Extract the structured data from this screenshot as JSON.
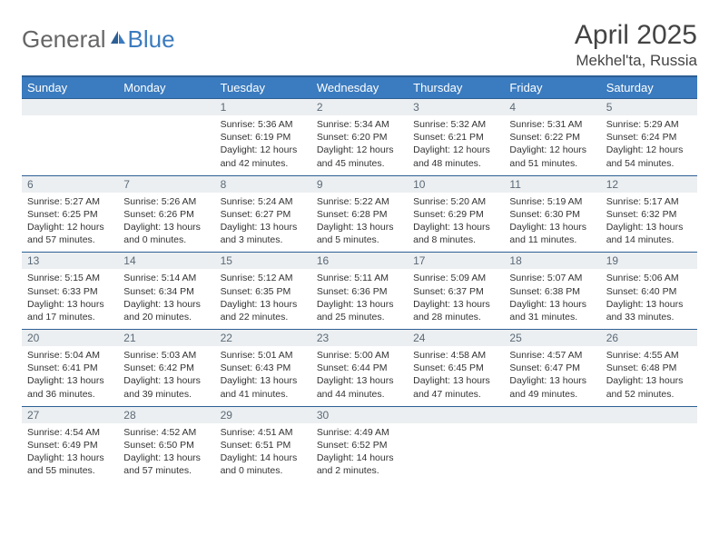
{
  "brand": {
    "part1": "General",
    "part2": "Blue"
  },
  "title": "April 2025",
  "location": "Mekhel'ta, Russia",
  "colors": {
    "header_bg": "#3b7bbf",
    "header_border": "#2d5f94",
    "daynum_bg": "#eceff1",
    "daynum_text": "#5b6a78",
    "text": "#333333",
    "page_bg": "#ffffff"
  },
  "typography": {
    "title_fontsize": 30,
    "location_fontsize": 17,
    "weekday_fontsize": 13,
    "daynum_fontsize": 12,
    "body_fontsize": 10.5
  },
  "weekdays": [
    "Sunday",
    "Monday",
    "Tuesday",
    "Wednesday",
    "Thursday",
    "Friday",
    "Saturday"
  ],
  "weeks": [
    [
      {
        "n": "",
        "sr": "",
        "ss": "",
        "dl": ""
      },
      {
        "n": "",
        "sr": "",
        "ss": "",
        "dl": ""
      },
      {
        "n": "1",
        "sr": "Sunrise: 5:36 AM",
        "ss": "Sunset: 6:19 PM",
        "dl": "Daylight: 12 hours and 42 minutes."
      },
      {
        "n": "2",
        "sr": "Sunrise: 5:34 AM",
        "ss": "Sunset: 6:20 PM",
        "dl": "Daylight: 12 hours and 45 minutes."
      },
      {
        "n": "3",
        "sr": "Sunrise: 5:32 AM",
        "ss": "Sunset: 6:21 PM",
        "dl": "Daylight: 12 hours and 48 minutes."
      },
      {
        "n": "4",
        "sr": "Sunrise: 5:31 AM",
        "ss": "Sunset: 6:22 PM",
        "dl": "Daylight: 12 hours and 51 minutes."
      },
      {
        "n": "5",
        "sr": "Sunrise: 5:29 AM",
        "ss": "Sunset: 6:24 PM",
        "dl": "Daylight: 12 hours and 54 minutes."
      }
    ],
    [
      {
        "n": "6",
        "sr": "Sunrise: 5:27 AM",
        "ss": "Sunset: 6:25 PM",
        "dl": "Daylight: 12 hours and 57 minutes."
      },
      {
        "n": "7",
        "sr": "Sunrise: 5:26 AM",
        "ss": "Sunset: 6:26 PM",
        "dl": "Daylight: 13 hours and 0 minutes."
      },
      {
        "n": "8",
        "sr": "Sunrise: 5:24 AM",
        "ss": "Sunset: 6:27 PM",
        "dl": "Daylight: 13 hours and 3 minutes."
      },
      {
        "n": "9",
        "sr": "Sunrise: 5:22 AM",
        "ss": "Sunset: 6:28 PM",
        "dl": "Daylight: 13 hours and 5 minutes."
      },
      {
        "n": "10",
        "sr": "Sunrise: 5:20 AM",
        "ss": "Sunset: 6:29 PM",
        "dl": "Daylight: 13 hours and 8 minutes."
      },
      {
        "n": "11",
        "sr": "Sunrise: 5:19 AM",
        "ss": "Sunset: 6:30 PM",
        "dl": "Daylight: 13 hours and 11 minutes."
      },
      {
        "n": "12",
        "sr": "Sunrise: 5:17 AM",
        "ss": "Sunset: 6:32 PM",
        "dl": "Daylight: 13 hours and 14 minutes."
      }
    ],
    [
      {
        "n": "13",
        "sr": "Sunrise: 5:15 AM",
        "ss": "Sunset: 6:33 PM",
        "dl": "Daylight: 13 hours and 17 minutes."
      },
      {
        "n": "14",
        "sr": "Sunrise: 5:14 AM",
        "ss": "Sunset: 6:34 PM",
        "dl": "Daylight: 13 hours and 20 minutes."
      },
      {
        "n": "15",
        "sr": "Sunrise: 5:12 AM",
        "ss": "Sunset: 6:35 PM",
        "dl": "Daylight: 13 hours and 22 minutes."
      },
      {
        "n": "16",
        "sr": "Sunrise: 5:11 AM",
        "ss": "Sunset: 6:36 PM",
        "dl": "Daylight: 13 hours and 25 minutes."
      },
      {
        "n": "17",
        "sr": "Sunrise: 5:09 AM",
        "ss": "Sunset: 6:37 PM",
        "dl": "Daylight: 13 hours and 28 minutes."
      },
      {
        "n": "18",
        "sr": "Sunrise: 5:07 AM",
        "ss": "Sunset: 6:38 PM",
        "dl": "Daylight: 13 hours and 31 minutes."
      },
      {
        "n": "19",
        "sr": "Sunrise: 5:06 AM",
        "ss": "Sunset: 6:40 PM",
        "dl": "Daylight: 13 hours and 33 minutes."
      }
    ],
    [
      {
        "n": "20",
        "sr": "Sunrise: 5:04 AM",
        "ss": "Sunset: 6:41 PM",
        "dl": "Daylight: 13 hours and 36 minutes."
      },
      {
        "n": "21",
        "sr": "Sunrise: 5:03 AM",
        "ss": "Sunset: 6:42 PM",
        "dl": "Daylight: 13 hours and 39 minutes."
      },
      {
        "n": "22",
        "sr": "Sunrise: 5:01 AM",
        "ss": "Sunset: 6:43 PM",
        "dl": "Daylight: 13 hours and 41 minutes."
      },
      {
        "n": "23",
        "sr": "Sunrise: 5:00 AM",
        "ss": "Sunset: 6:44 PM",
        "dl": "Daylight: 13 hours and 44 minutes."
      },
      {
        "n": "24",
        "sr": "Sunrise: 4:58 AM",
        "ss": "Sunset: 6:45 PM",
        "dl": "Daylight: 13 hours and 47 minutes."
      },
      {
        "n": "25",
        "sr": "Sunrise: 4:57 AM",
        "ss": "Sunset: 6:47 PM",
        "dl": "Daylight: 13 hours and 49 minutes."
      },
      {
        "n": "26",
        "sr": "Sunrise: 4:55 AM",
        "ss": "Sunset: 6:48 PM",
        "dl": "Daylight: 13 hours and 52 minutes."
      }
    ],
    [
      {
        "n": "27",
        "sr": "Sunrise: 4:54 AM",
        "ss": "Sunset: 6:49 PM",
        "dl": "Daylight: 13 hours and 55 minutes."
      },
      {
        "n": "28",
        "sr": "Sunrise: 4:52 AM",
        "ss": "Sunset: 6:50 PM",
        "dl": "Daylight: 13 hours and 57 minutes."
      },
      {
        "n": "29",
        "sr": "Sunrise: 4:51 AM",
        "ss": "Sunset: 6:51 PM",
        "dl": "Daylight: 14 hours and 0 minutes."
      },
      {
        "n": "30",
        "sr": "Sunrise: 4:49 AM",
        "ss": "Sunset: 6:52 PM",
        "dl": "Daylight: 14 hours and 2 minutes."
      },
      {
        "n": "",
        "sr": "",
        "ss": "",
        "dl": ""
      },
      {
        "n": "",
        "sr": "",
        "ss": "",
        "dl": ""
      },
      {
        "n": "",
        "sr": "",
        "ss": "",
        "dl": ""
      }
    ]
  ]
}
